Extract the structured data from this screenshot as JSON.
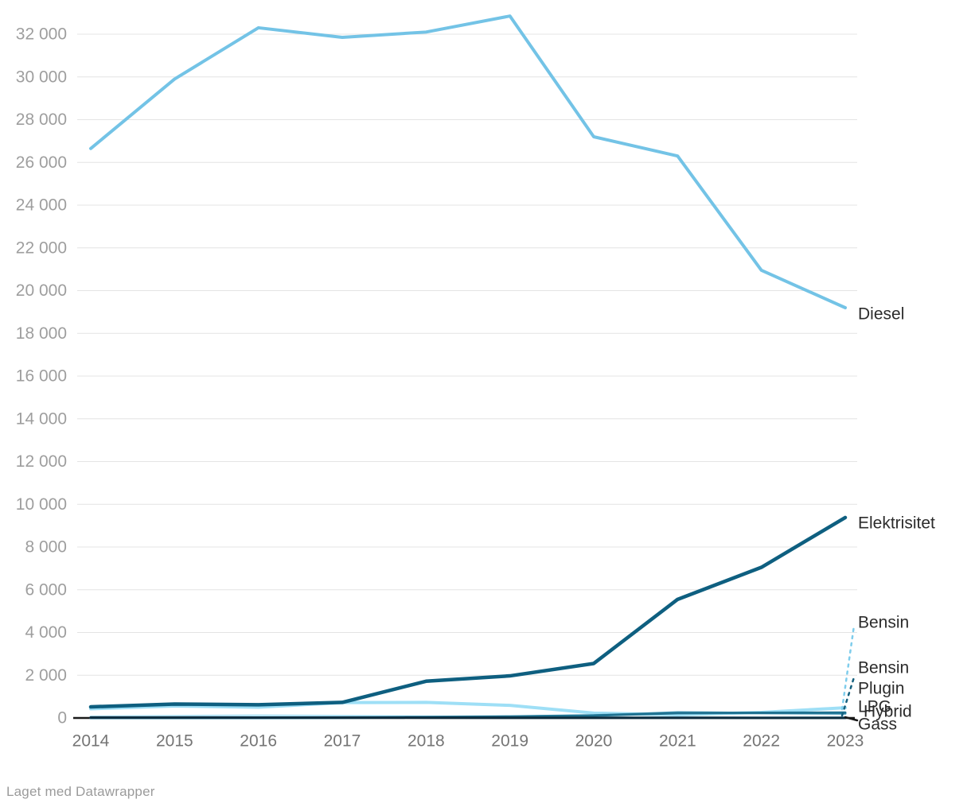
{
  "footer": {
    "credit": "Laget med Datawrapper"
  },
  "chart_data": {
    "type": "line",
    "title": "",
    "xlabel": "",
    "ylabel": "",
    "grid": true,
    "legend_position": "right-end-labels",
    "x": [
      "2014",
      "2015",
      "2016",
      "2017",
      "2018",
      "2019",
      "2020",
      "2021",
      "2022",
      "2023"
    ],
    "ylim": [
      0,
      33200
    ],
    "y_ticks": [
      {
        "value": 0,
        "label": "0"
      },
      {
        "value": 2000,
        "label": "2 000"
      },
      {
        "value": 4000,
        "label": "4 000"
      },
      {
        "value": 6000,
        "label": "6 000"
      },
      {
        "value": 8000,
        "label": "8 000"
      },
      {
        "value": 10000,
        "label": "10 000"
      },
      {
        "value": 12000,
        "label": "12 000"
      },
      {
        "value": 14000,
        "label": "14 000"
      },
      {
        "value": 16000,
        "label": "16 000"
      },
      {
        "value": 18000,
        "label": "18 000"
      },
      {
        "value": 20000,
        "label": "20 000"
      },
      {
        "value": 22000,
        "label": "22 000"
      },
      {
        "value": 24000,
        "label": "24 000"
      },
      {
        "value": 26000,
        "label": "26 000"
      },
      {
        "value": 28000,
        "label": "28 000"
      },
      {
        "value": 30000,
        "label": "30 000"
      },
      {
        "value": 32000,
        "label": "32 000"
      }
    ],
    "series": [
      {
        "id": "bensin",
        "name": "Bensin",
        "color": "#9edff6",
        "stroke_width": 4,
        "values": [
          430,
          560,
          500,
          720,
          730,
          590,
          230,
          150,
          260,
          480
        ],
        "label": {
          "x": 1078,
          "lines": [
            {
              "text": "Bensin",
              "y": 783
            }
          ]
        },
        "connector": {
          "style": "dashed",
          "color": "#7fcdec",
          "from": [
            1058,
            892
          ],
          "to": [
            1073,
            787
          ]
        }
      },
      {
        "id": "lpg",
        "name": "LPG",
        "color": "#b5e4f6",
        "stroke_width": 3,
        "values": [
          60,
          90,
          110,
          95,
          60,
          40,
          25,
          20,
          20,
          25
        ],
        "label": {
          "x": 1078,
          "lines": [
            {
              "text": "LPG",
              "y": 889
            }
          ]
        },
        "connector": null
      },
      {
        "id": "hybrid",
        "name": "Hybrid",
        "color": "#4d9fbe",
        "stroke_width": 3,
        "values": [
          5,
          10,
          20,
          30,
          50,
          70,
          120,
          260,
          230,
          210
        ],
        "label": {
          "x": 1085,
          "lines": [
            {
              "text": "Hybrid",
              "y": 895
            }
          ]
        },
        "connector": null
      },
      {
        "id": "bensin-plugin",
        "name": "Bensin Plugin",
        "color": "#1f7291",
        "stroke_width": 3,
        "values": [
          0,
          0,
          0,
          10,
          30,
          60,
          110,
          230,
          240,
          250
        ],
        "label": {
          "x": 1078,
          "lines": [
            {
              "text": "Bensin",
              "y": 840
            },
            {
              "text": "Plugin",
              "y": 866
            }
          ]
        },
        "connector": {
          "style": "dashed",
          "color": "#15607e",
          "from": [
            1058,
            900
          ],
          "to": [
            1073,
            852
          ]
        }
      },
      {
        "id": "gass",
        "name": "Gass",
        "color": "#0d2c3e",
        "stroke_width": 3,
        "values": [
          25,
          25,
          20,
          20,
          15,
          10,
          10,
          10,
          5,
          5
        ],
        "label": {
          "x": 1078,
          "lines": [
            {
              "text": "Gass",
              "y": 911
            }
          ]
        },
        "connector": {
          "style": "solid",
          "color": "#1a1a1a",
          "from": [
            1062,
            902
          ],
          "to": [
            1077,
            906
          ]
        }
      },
      {
        "id": "diesel",
        "name": "Diesel",
        "color": "#73c3e6",
        "stroke_width": 4,
        "values": [
          26650,
          29900,
          32300,
          31850,
          32100,
          32850,
          27200,
          26300,
          20950,
          19200
        ],
        "label": {
          "x": 1078,
          "lines": [
            {
              "text": "Diesel",
              "y": 395
            }
          ]
        },
        "connector": null
      },
      {
        "id": "elektrisitet",
        "name": "Elektrisitet",
        "color": "#0e5f80",
        "stroke_width": 4.5,
        "values": [
          520,
          650,
          620,
          730,
          1720,
          1970,
          2550,
          5550,
          7050,
          9380
        ],
        "label": {
          "x": 1078,
          "lines": [
            {
              "text": "Elektrisitet",
              "y": 658
            }
          ]
        },
        "connector": null
      }
    ],
    "style": {
      "grid_color": "#e4e4e4",
      "axis_color": "#1a1a1a",
      "y_tick_color": "#9e9e9e",
      "x_tick_color": "#757575",
      "series_label_color": "#2c2c2c"
    }
  }
}
